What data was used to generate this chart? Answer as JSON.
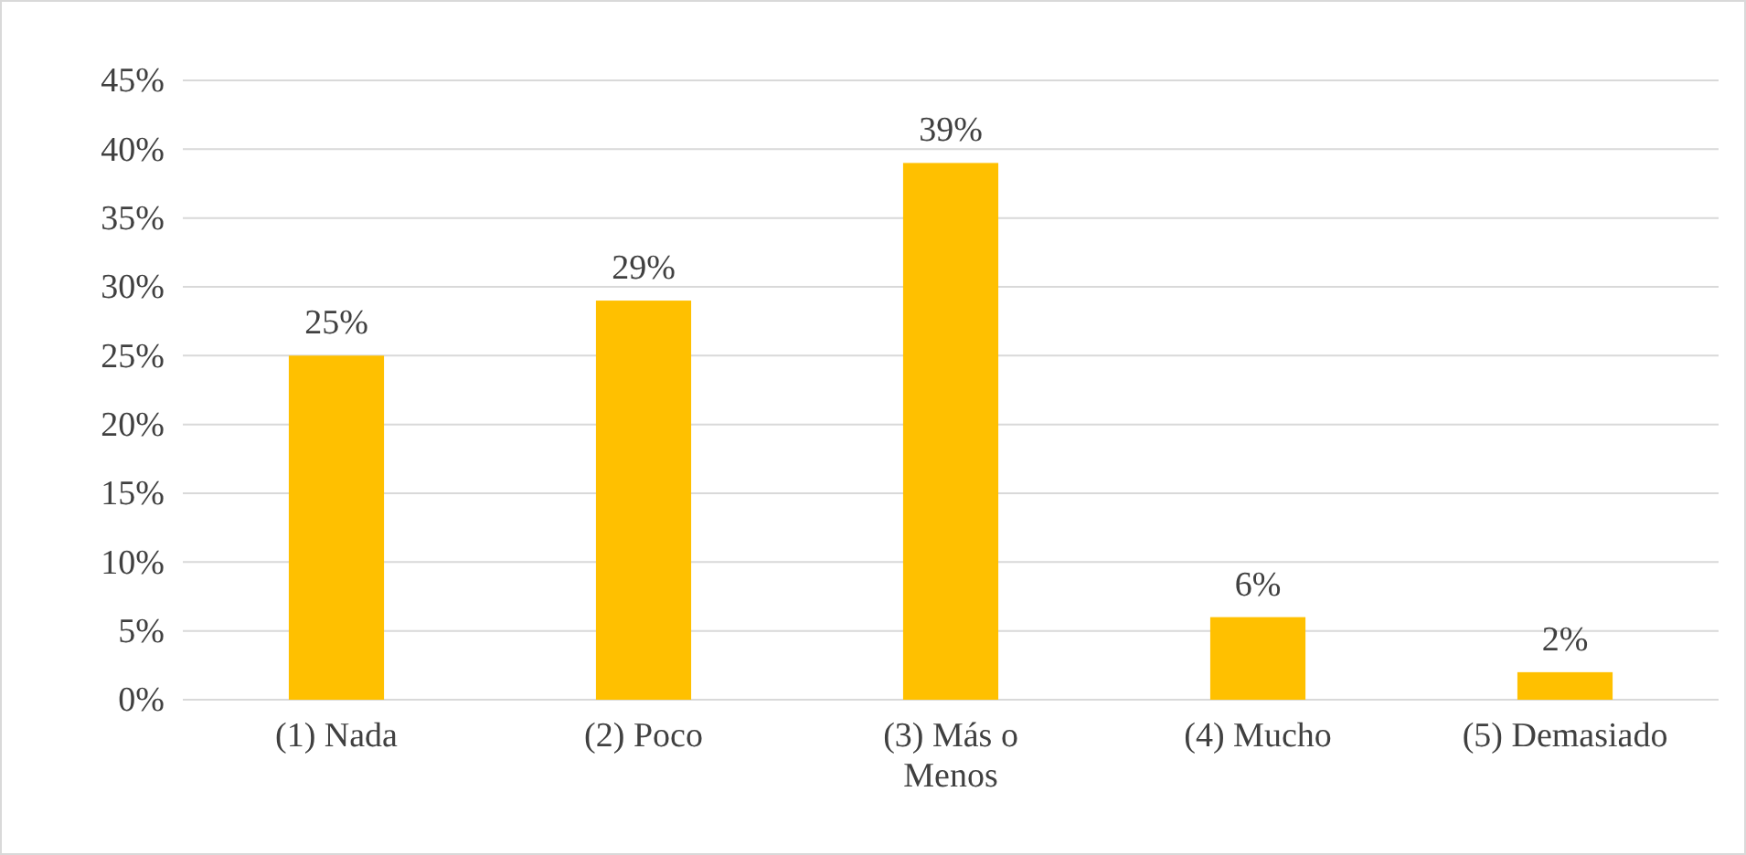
{
  "chart_data": {
    "type": "bar",
    "categories": [
      "(1) Nada",
      "(2) Poco",
      "(3) Más o Menos",
      "(4) Mucho",
      "(5) Demasiado"
    ],
    "values": [
      25,
      29,
      39,
      6,
      2
    ],
    "value_labels": [
      "25%",
      "29%",
      "39%",
      "6%",
      "2%"
    ],
    "color": "#ffc000",
    "ylim": [
      0,
      45
    ],
    "yticks": [
      {
        "value": 0,
        "label": "0%"
      },
      {
        "value": 5,
        "label": "5%"
      },
      {
        "value": 10,
        "label": "10%"
      },
      {
        "value": 15,
        "label": "15%"
      },
      {
        "value": 20,
        "label": "20%"
      },
      {
        "value": 25,
        "label": "25%"
      },
      {
        "value": 30,
        "label": "30%"
      },
      {
        "value": 35,
        "label": "35%"
      },
      {
        "value": 40,
        "label": "40%"
      },
      {
        "value": 45,
        "label": "45%"
      }
    ],
    "grid": "y"
  }
}
